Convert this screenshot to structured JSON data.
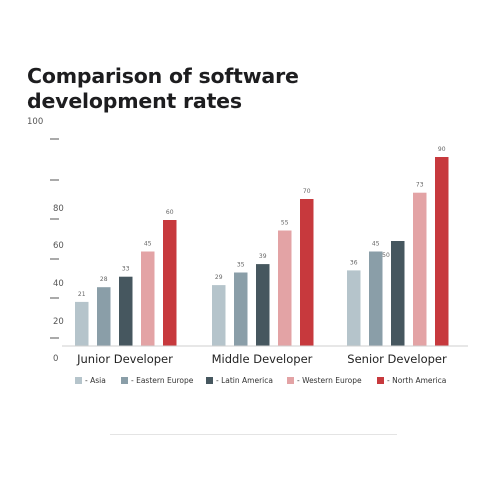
{
  "chart_data": {
    "type": "bar",
    "title": "Comparison of software development rates",
    "categories": [
      "Junior Developer",
      "Middle Developer",
      "Senior Developer"
    ],
    "series": [
      {
        "name": "- Asia",
        "color": "#b5c4cb",
        "values": [
          21,
          29,
          36
        ]
      },
      {
        "name": "- Eastern Europe",
        "color": "#8a9ea8",
        "values": [
          28,
          35,
          45
        ]
      },
      {
        "name": "- Latin America",
        "color": "#46575f",
        "values": [
          33,
          39,
          50
        ]
      },
      {
        "name": "- Western Europe",
        "color": "#e3a3a5",
        "values": [
          45,
          55,
          73
        ]
      },
      {
        "name": "- North America",
        "color": "#c7393d",
        "values": [
          60,
          70,
          90
        ]
      }
    ],
    "y_ticks": [
      "0",
      "20",
      "40",
      "60",
      "80",
      "100"
    ],
    "ylim": [
      0,
      100
    ],
    "legend_position": "bottom"
  }
}
